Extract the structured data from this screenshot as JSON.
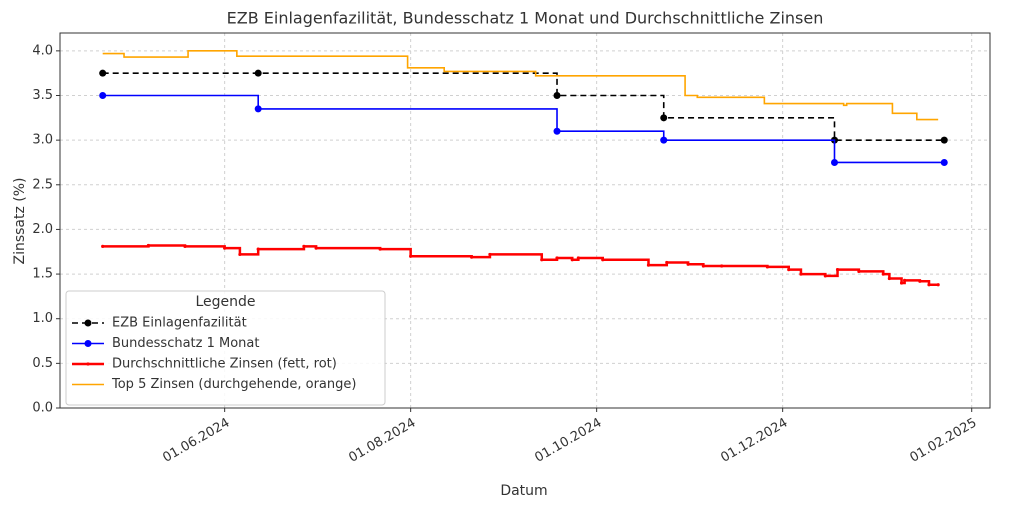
{
  "chart_data": {
    "type": "step-line",
    "title": "EZB Einlagenfazilität, Bundesschatz 1 Monat und Durchschnittliche Zinsen",
    "x_label": "Datum",
    "y_label": "Zinssatz (%)",
    "legend_title": "Legende",
    "legend": "lower left",
    "grid": true,
    "xlim": [
      "2024-04-08",
      "2025-02-07"
    ],
    "xticks": [
      {
        "value": "2024-06-01",
        "label": "01.06.2024"
      },
      {
        "value": "2024-08-01",
        "label": "01.08.2024"
      },
      {
        "value": "2024-10-01",
        "label": "01.10.2024"
      },
      {
        "value": "2024-12-01",
        "label": "01.12.2024"
      },
      {
        "value": "2025-02-01",
        "label": "01.02.2025"
      }
    ],
    "ylim": [
      0,
      4.2
    ],
    "yticks": [
      {
        "value": 0,
        "label": "0.0"
      },
      {
        "value": 0.5,
        "label": "0.5"
      },
      {
        "value": 1,
        "label": "1.0"
      },
      {
        "value": 1.5,
        "label": "1.5"
      },
      {
        "value": 2,
        "label": "2.0"
      },
      {
        "value": 2.5,
        "label": "2.5"
      },
      {
        "value": 3,
        "label": "3.0"
      },
      {
        "value": 3.5,
        "label": "3.5"
      },
      {
        "value": 4,
        "label": "4.0"
      }
    ],
    "series": [
      {
        "name": "EZB Einlagenfazilität",
        "color": "#000000",
        "line_style": "dashed",
        "marker": "large",
        "x": [
          "2024-04-22",
          "2024-06-12",
          "2024-09-18",
          "2024-10-23",
          "2024-12-18",
          "2025-01-23"
        ],
        "values": [
          3.75,
          3.75,
          3.5,
          3.25,
          3.0,
          3.0
        ]
      },
      {
        "name": "Bundesschatz 1 Monat",
        "color": "#0000ff",
        "line_style": "solid",
        "marker": "large",
        "x": [
          "2024-04-22",
          "2024-06-12",
          "2024-09-18",
          "2024-10-23",
          "2024-12-18",
          "2025-01-23"
        ],
        "values": [
          3.5,
          3.35,
          3.1,
          3.0,
          2.75,
          2.75
        ]
      },
      {
        "name": "Durchschnittliche Zinsen (fett, rot)",
        "color": "#ff0000",
        "line_style": "bold",
        "marker": "small",
        "x": [
          "2024-04-22",
          "2024-05-07",
          "2024-05-19",
          "2024-06-01",
          "2024-06-06",
          "2024-06-12",
          "2024-06-27",
          "2024-07-01",
          "2024-07-22",
          "2024-08-01",
          "2024-08-21",
          "2024-08-27",
          "2024-09-13",
          "2024-09-18",
          "2024-09-23",
          "2024-09-25",
          "2024-10-03",
          "2024-10-18",
          "2024-10-24",
          "2024-10-31",
          "2024-11-05",
          "2024-11-11",
          "2024-11-26",
          "2024-12-03",
          "2024-12-07",
          "2024-12-15",
          "2024-12-19",
          "2024-12-26",
          "2025-01-03",
          "2025-01-05",
          "2025-01-09",
          "2025-01-10",
          "2025-01-15",
          "2025-01-18",
          "2025-01-21"
        ],
        "values": [
          1.81,
          1.82,
          1.81,
          1.79,
          1.72,
          1.78,
          1.81,
          1.79,
          1.78,
          1.7,
          1.69,
          1.72,
          1.66,
          1.68,
          1.66,
          1.68,
          1.66,
          1.6,
          1.63,
          1.61,
          1.59,
          1.59,
          1.58,
          1.55,
          1.5,
          1.48,
          1.55,
          1.53,
          1.5,
          1.45,
          1.4,
          1.43,
          1.42,
          1.38,
          1.38
        ]
      },
      {
        "name": "Top 5 Zinsen (durchgehende, orange)",
        "color": "#ffa500",
        "line_style": "solid",
        "marker": "none",
        "x": [
          "2024-04-22",
          "2024-04-29",
          "2024-05-20",
          "2024-06-05",
          "2024-07-31",
          "2024-08-12",
          "2024-09-11",
          "2024-10-30",
          "2024-11-03",
          "2024-11-25",
          "2024-12-21",
          "2024-12-22",
          "2025-01-06",
          "2025-01-14",
          "2025-01-21"
        ],
        "values": [
          3.97,
          3.93,
          4.0,
          3.94,
          3.81,
          3.77,
          3.72,
          3.5,
          3.48,
          3.41,
          3.39,
          3.41,
          3.3,
          3.23,
          3.23
        ]
      }
    ]
  }
}
